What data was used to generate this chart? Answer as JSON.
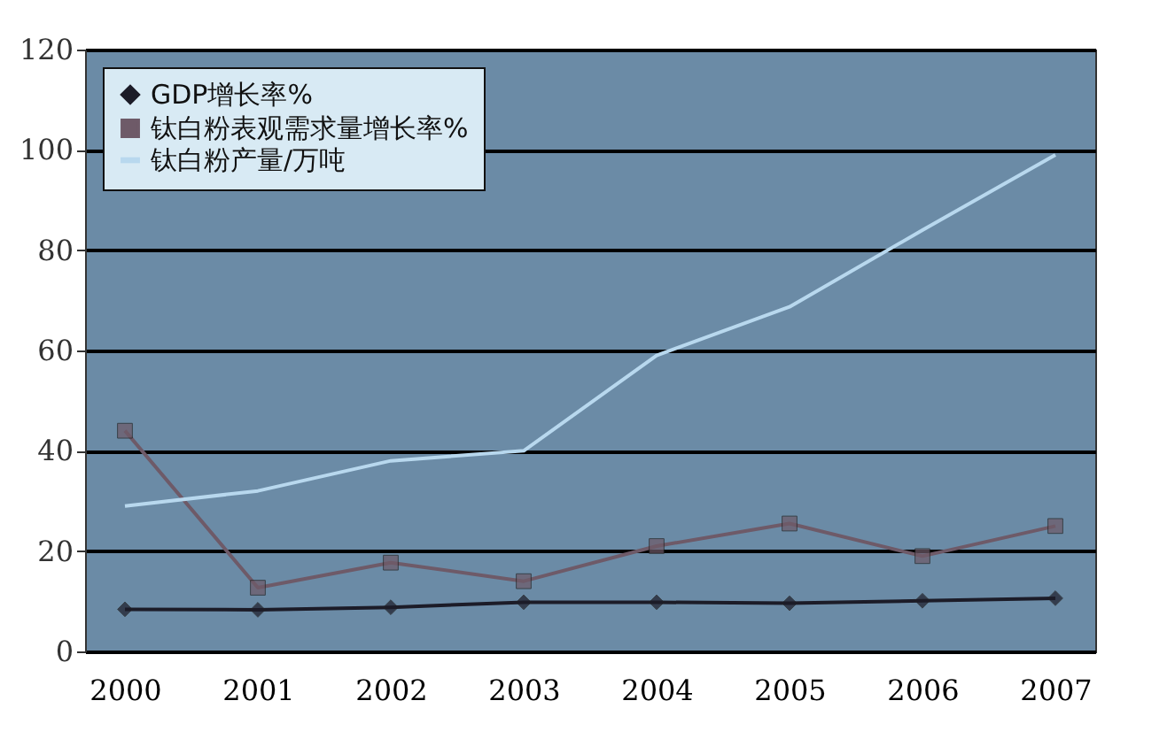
{
  "chart_data": {
    "type": "line",
    "categories": [
      "2000",
      "2001",
      "2002",
      "2003",
      "2004",
      "2005",
      "2006",
      "2007"
    ],
    "series": [
      {
        "name": "GDP增长率%",
        "color": "#1c1c28",
        "marker": "diamond",
        "values": [
          8.4,
          8.3,
          8.8,
          9.8,
          9.8,
          9.6,
          10.1,
          10.6
        ]
      },
      {
        "name": "钛白粉表观需求量增长率%",
        "color": "#6e5a68",
        "marker": "square",
        "values": [
          44,
          12.7,
          17.7,
          14,
          21,
          25.5,
          19,
          25
        ]
      },
      {
        "name": "钛白粉产量/万吨",
        "color": "#b8d8ee",
        "marker": "none",
        "values": [
          29,
          32,
          38,
          40,
          59,
          68.7,
          84,
          99
        ]
      }
    ],
    "ylim": [
      0,
      120
    ],
    "yticks": [
      0,
      20,
      40,
      60,
      80,
      100,
      120
    ],
    "grid": "y",
    "legend": "top left"
  }
}
